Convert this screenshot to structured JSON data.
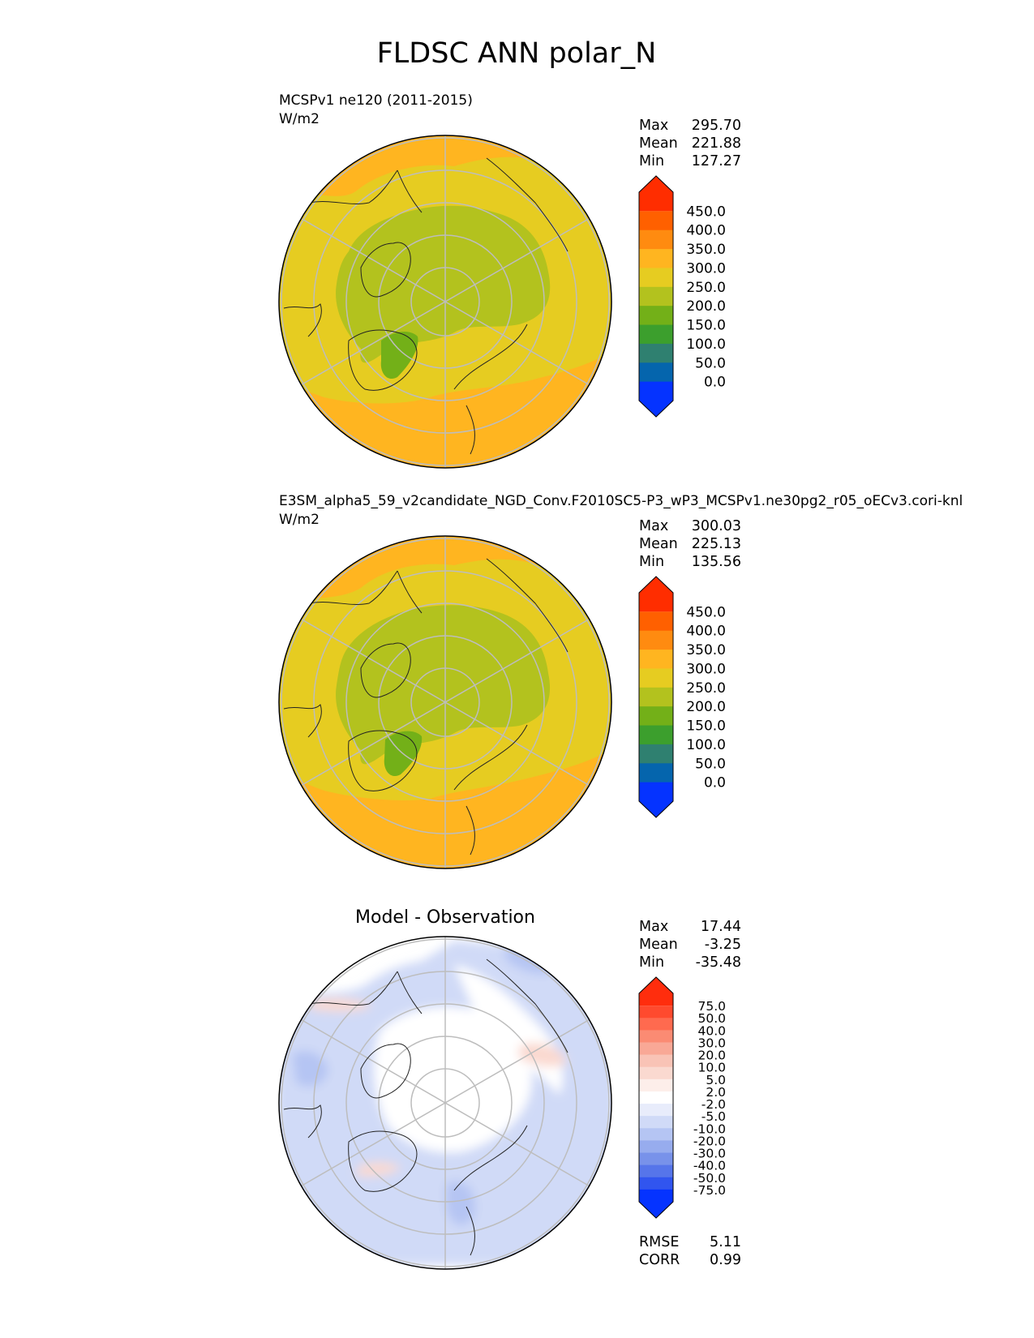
{
  "title": "FLDSC ANN polar_N",
  "chart_data": [
    {
      "type": "heatmap",
      "projection": "north polar stereographic",
      "title": "MCSPv1 ne120 (2011-2015)",
      "units": "W/m2",
      "stats": {
        "labels": [
          "Max",
          "Mean",
          "Min"
        ],
        "values": [
          "295.70",
          "221.88",
          "127.27"
        ]
      },
      "colorbar": {
        "tick_labels": [
          "450.0",
          "400.0",
          "350.0",
          "300.0",
          "250.0",
          "200.0",
          "150.0",
          "100.0",
          "50.0",
          "0.0"
        ],
        "levels": [
          0,
          50,
          100,
          150,
          200,
          250,
          300,
          350,
          400,
          450
        ],
        "colors": [
          "#0533ff",
          "#0565ad",
          "#2f8070",
          "#3c9f2d",
          "#73b018",
          "#b3c21e",
          "#e6cc21",
          "#ffb520",
          "#ff8b10",
          "#ff6000",
          "#ff2d00"
        ],
        "extend": "both"
      },
      "field_regions": {
        "ocean_margin": "300.0",
        "subpolar": "250.0",
        "arctic_basin": "200.0",
        "greenland_min": "150.0"
      }
    },
    {
      "type": "heatmap",
      "projection": "north polar stereographic",
      "title": "E3SM_alpha5_59_v2candidate_NGD_Conv.F2010SC5-P3_wP3_MCSPv1.ne30pg2_r05_oECv3.cori-knl",
      "units": "W/m2",
      "stats": {
        "labels": [
          "Max",
          "Mean",
          "Min"
        ],
        "values": [
          "300.03",
          "225.13",
          "135.56"
        ]
      },
      "colorbar": {
        "tick_labels": [
          "450.0",
          "400.0",
          "350.0",
          "300.0",
          "250.0",
          "200.0",
          "150.0",
          "100.0",
          "50.0",
          "0.0"
        ],
        "levels": [
          0,
          50,
          100,
          150,
          200,
          250,
          300,
          350,
          400,
          450
        ],
        "colors": [
          "#0533ff",
          "#0565ad",
          "#2f8070",
          "#3c9f2d",
          "#73b018",
          "#b3c21e",
          "#e6cc21",
          "#ffb520",
          "#ff8b10",
          "#ff6000",
          "#ff2d00"
        ],
        "extend": "both"
      },
      "field_regions": {
        "ocean_margin": "300.0",
        "subpolar": "250.0",
        "arctic_basin": "200.0",
        "greenland_min": "150.0"
      }
    },
    {
      "type": "heatmap",
      "projection": "north polar stereographic",
      "title": "Model - Observation",
      "stats": {
        "labels": [
          "Max",
          "Mean",
          "Min"
        ],
        "values": [
          "17.44",
          "-3.25",
          "-35.48"
        ]
      },
      "colorbar": {
        "tick_labels": [
          "75.0",
          "50.0",
          "40.0",
          "30.0",
          "20.0",
          "10.0",
          "5.0",
          "2.0",
          "-2.0",
          "-5.0",
          "-10.0",
          "-20.0",
          "-30.0",
          "-40.0",
          "-50.0",
          "-75.0"
        ],
        "levels": [
          75,
          50,
          40,
          30,
          20,
          10,
          5,
          2,
          -2,
          -5,
          -10,
          -20,
          -30,
          -40,
          -50,
          -75
        ],
        "colors": [
          "#ff2d0d",
          "#ff4a2e",
          "#ff6a4f",
          "#fb8b73",
          "#f9a896",
          "#f9c3b6",
          "#fad9d0",
          "#fdeeea",
          "#ffffff",
          "#e8ecfb",
          "#d0daf7",
          "#b5c5f3",
          "#97acee",
          "#7892ea",
          "#5675ea",
          "#3155ef",
          "#0533ff"
        ],
        "extend": "both"
      },
      "footer": {
        "labels": [
          "RMSE",
          "CORR"
        ],
        "values": [
          "5.11",
          "0.99"
        ]
      }
    }
  ]
}
